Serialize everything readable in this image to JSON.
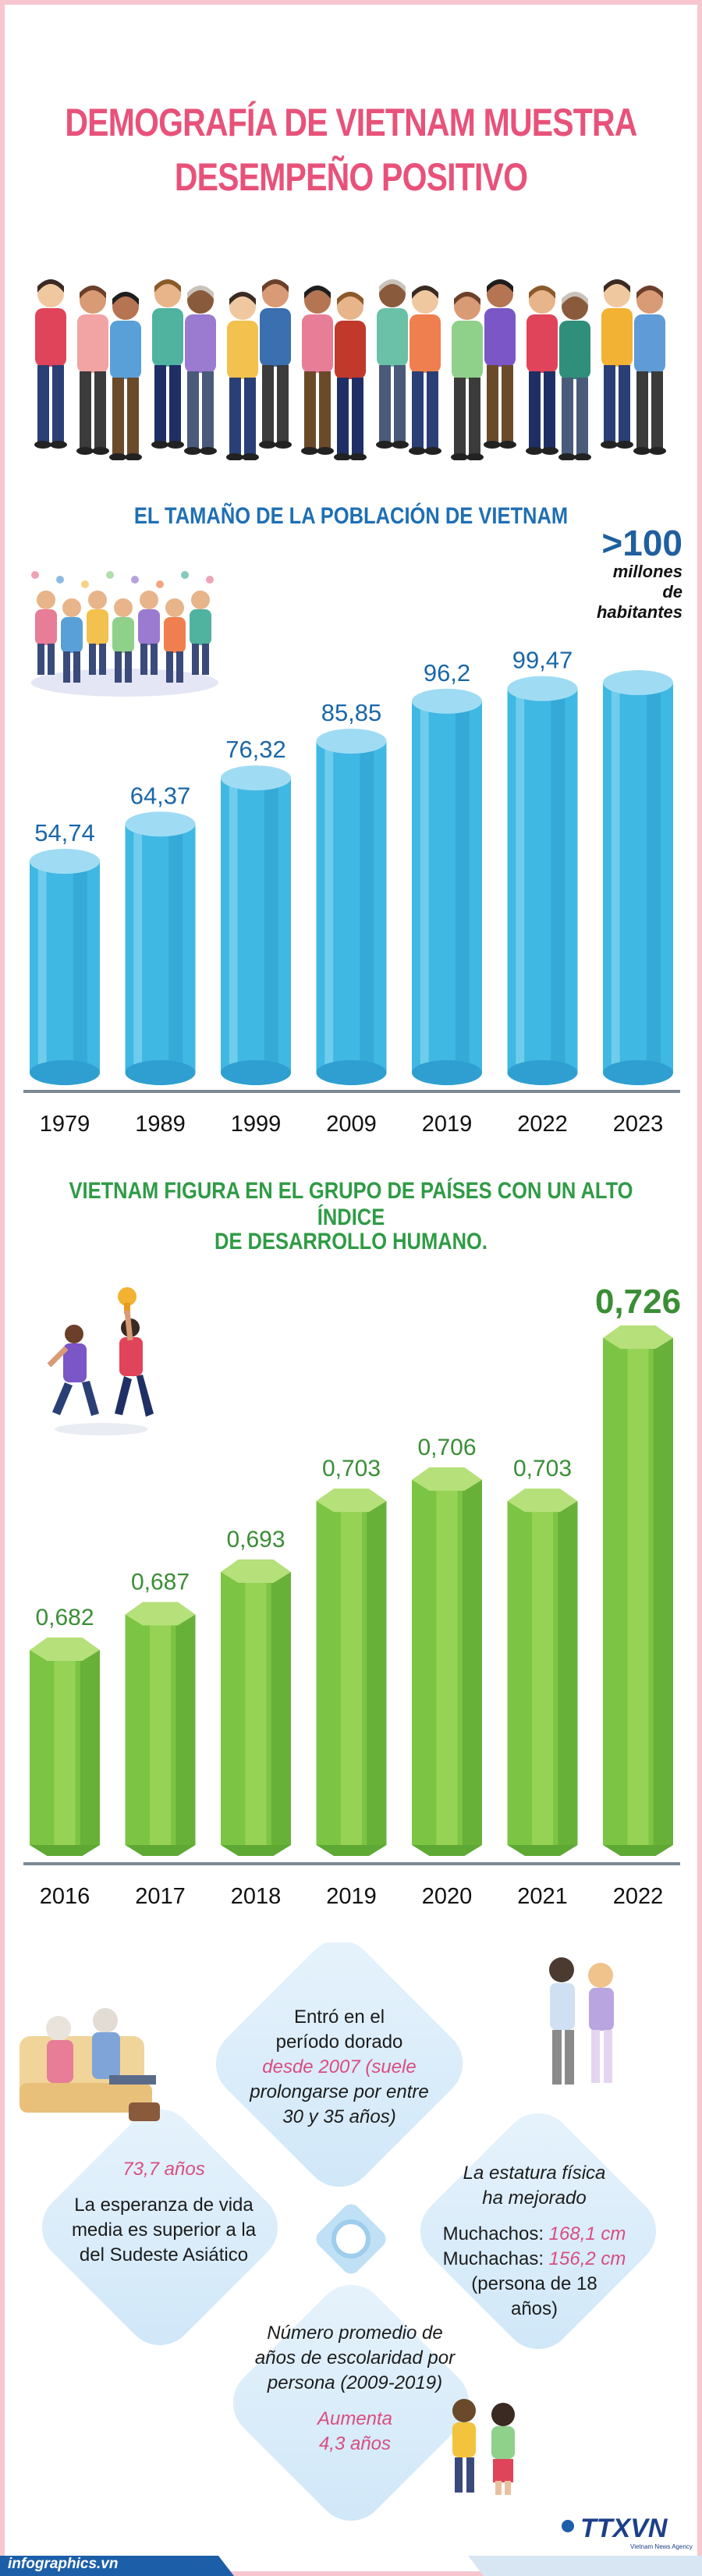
{
  "title": {
    "line1": "DEMOGRAFÍA DE VIETNAM MUESTRA",
    "line2": "DESEMPEÑO POSITIVO"
  },
  "population": {
    "section_title": "EL TAMAÑO DE LA POBLACIÓN DE VIETNAM",
    "callout_value": ">100",
    "callout_unit_line1": "millones",
    "callout_unit_line2": "de habitantes"
  },
  "hdi": {
    "section_title_line1": "VIETNAM FIGURA EN EL GRUPO DE PAÍSES CON UN ALTO ÍNDICE",
    "section_title_line2": "DE DESARROLLO HUMANO."
  },
  "chart_data": [
    {
      "type": "bar",
      "categories": [
        "1979",
        "1989",
        "1999",
        "2009",
        "2019",
        "2022",
        "2023"
      ],
      "values": [
        54.74,
        64.37,
        76.32,
        85.85,
        96.2,
        99.47,
        null
      ],
      "value_labels": [
        "54,74",
        "64,37",
        "76,32",
        "85,85",
        "96,2",
        "99,47",
        ""
      ],
      "color": "#3fb8e3"
    },
    {
      "type": "bar",
      "categories": [
        "2016",
        "2017",
        "2018",
        "2019",
        "2020",
        "2021",
        "2022"
      ],
      "values": [
        0.682,
        0.687,
        0.693,
        0.703,
        0.706,
        0.703,
        0.726
      ],
      "value_labels": [
        "0,682",
        "0,687",
        "0,693",
        "0,703",
        "0,706",
        "0,703",
        "0,726"
      ],
      "color": "#7cc544"
    }
  ],
  "facts": {
    "golden": {
      "line1": "Entró en el",
      "line2": "período dorado",
      "hl1": "desde 2007 (suele",
      "hl2": "prolongarse por  entre",
      "hl3": "30 y 35 años)"
    },
    "life": {
      "value": "73,7 años",
      "line1": "La esperanza de vida",
      "line2": "media es superior a la",
      "line3": "del Sudeste Asiático"
    },
    "stature": {
      "line1": "La estatura física",
      "line2": "ha mejorado",
      "boys_label": "Muchachos: ",
      "boys_value": "168,1 cm",
      "girls_label": "Muchachas: ",
      "girls_value": "156,2 cm",
      "note1": "(persona de 18",
      "note2": "años)"
    },
    "school": {
      "line1": "Número promedio de",
      "line2": "años de escolaridad por",
      "line3": "persona (2009-2019)",
      "hl1": "Aumenta",
      "hl2": "4,3 años"
    }
  },
  "footer": {
    "site": "infographics.vn",
    "logo": "TTXVN",
    "logo_sub": "Vietnam News Agency"
  },
  "colors": {
    "title_pink": "#e8527a",
    "blue_bar": "#3fb8e3",
    "green_bar": "#7cc544",
    "section_blue": "#1f6fb4",
    "section_green": "#2f9b45",
    "footer_blue": "#1c5fa8"
  }
}
